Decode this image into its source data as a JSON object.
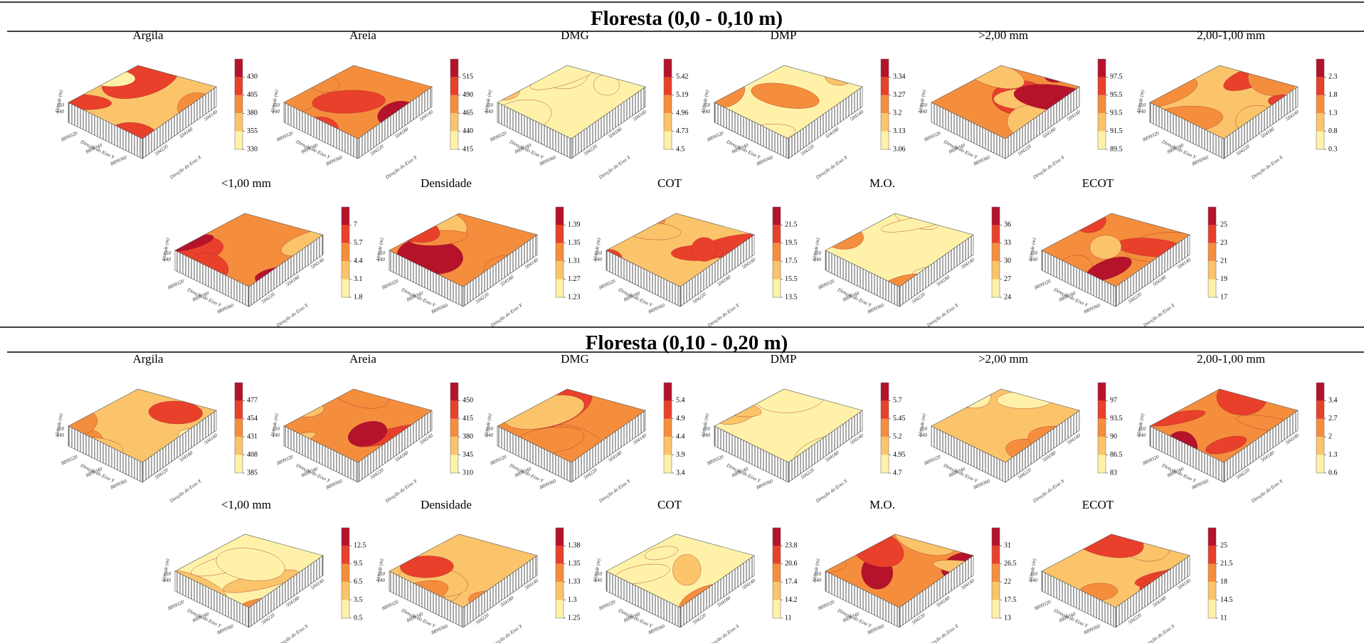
{
  "sections": [
    {
      "title": "Floresta (0,0 - 0,10 m)",
      "panels": [
        {
          "title": "Argila",
          "colorbar": [
            430,
            405,
            380,
            355,
            330
          ]
        },
        {
          "title": "Areia",
          "colorbar": [
            515,
            490,
            465,
            440,
            415
          ]
        },
        {
          "title": "DMG",
          "colorbar": [
            5.42,
            5.19,
            4.96,
            4.73,
            4.5
          ]
        },
        {
          "title": "DMP",
          "colorbar": [
            3.34,
            3.27,
            3.2,
            3.13,
            3.06
          ]
        },
        {
          "title": ">2,00 mm",
          "colorbar": [
            97.5,
            95.5,
            93.5,
            91.5,
            89.5
          ]
        },
        {
          "title": "2,00-1,00 mm",
          "colorbar": [
            2.3,
            1.8,
            1.3,
            0.8,
            0.3
          ]
        },
        {
          "title": "<1,00 mm",
          "colorbar": [
            7,
            5.7,
            4.4,
            3.1,
            1.8
          ]
        },
        {
          "title": "Densidade",
          "colorbar": [
            1.39,
            1.35,
            1.31,
            1.27,
            1.23
          ]
        },
        {
          "title": "COT",
          "colorbar": [
            21.5,
            19.5,
            17.5,
            15.5,
            13.5
          ]
        },
        {
          "title": "M.O.",
          "colorbar": [
            36,
            33,
            30,
            27,
            24
          ]
        },
        {
          "title": "ECOT",
          "colorbar": [
            25,
            23,
            21,
            19,
            17
          ]
        }
      ]
    },
    {
      "title": "Floresta (0,10 - 0,20 m)",
      "panels": [
        {
          "title": "Argila",
          "colorbar": [
            477,
            454,
            431,
            408,
            385
          ]
        },
        {
          "title": "Areia",
          "colorbar": [
            450,
            415,
            380,
            345,
            310
          ]
        },
        {
          "title": "DMG",
          "colorbar": [
            5.4,
            4.9,
            4.4,
            3.9,
            3.4
          ]
        },
        {
          "title": "DMP",
          "colorbar": [
            5.7,
            5.45,
            5.2,
            4.95,
            4.7
          ]
        },
        {
          "title": ">2,00 mm",
          "colorbar": [
            97,
            93.5,
            90,
            86.5,
            83
          ]
        },
        {
          "title": "2,00-1,00 mm",
          "colorbar": [
            3.4,
            2.7,
            2,
            1.3,
            0.6
          ]
        },
        {
          "title": "<1,00 mm",
          "colorbar": [
            12.5,
            9.5,
            6.5,
            3.5,
            0.5
          ]
        },
        {
          "title": "Densidade",
          "colorbar": [
            1.38,
            1.35,
            1.33,
            1.3,
            1.25
          ]
        },
        {
          "title": "COT",
          "colorbar": [
            23.8,
            20.6,
            17.4,
            14.2,
            11
          ]
        },
        {
          "title": "M.O.",
          "colorbar": [
            31,
            26.5,
            22,
            17.5,
            13
          ]
        },
        {
          "title": "ECOT",
          "colorbar": [
            25,
            21.5,
            18,
            14.5,
            11
          ]
        }
      ]
    }
  ],
  "axes": {
    "z_label": "Altitude (m)",
    "z_ticks": [
      "150",
      "140"
    ],
    "y_label": "Direção do Eixo Y",
    "y_ticks": [
      "8899320",
      "8899340",
      "8899360"
    ],
    "x_label": "Direção do Eixo X",
    "x_ticks": [
      "504220",
      "504180",
      "504140"
    ]
  }
}
